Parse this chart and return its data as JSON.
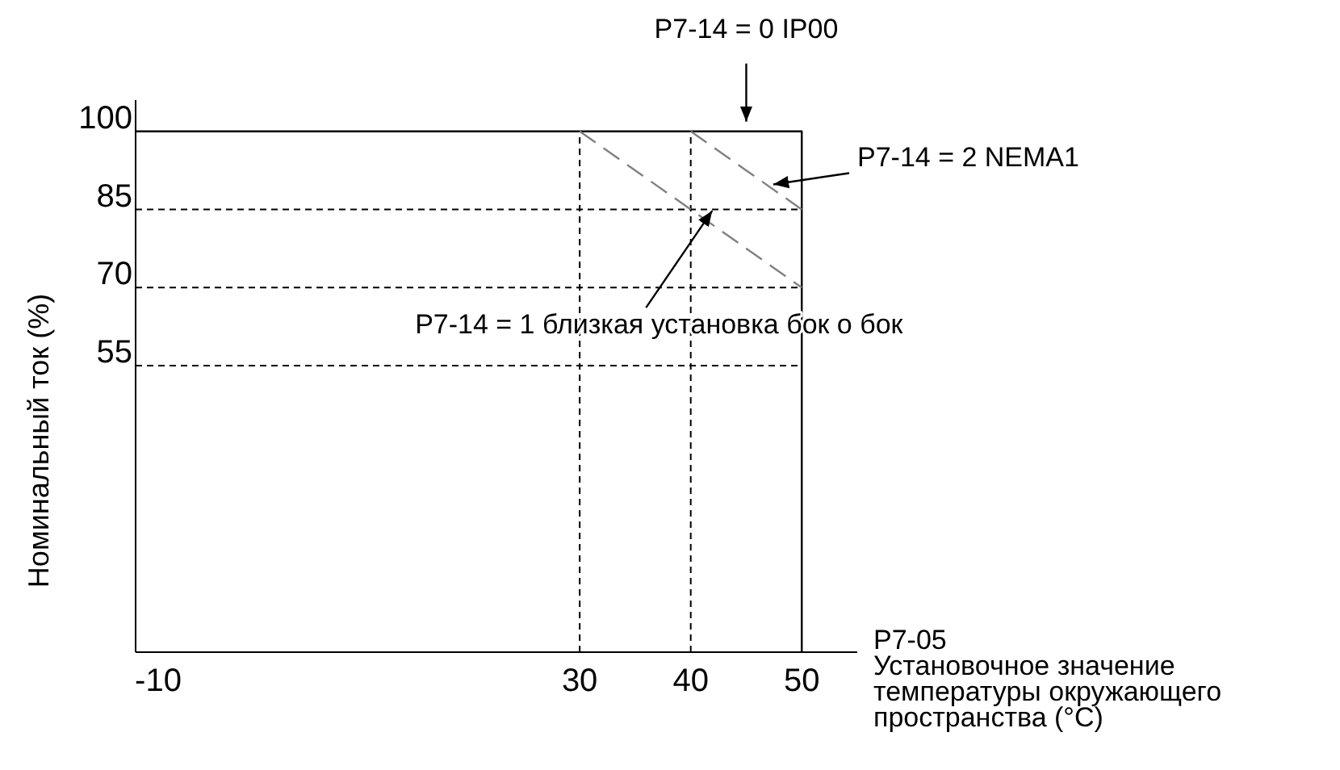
{
  "chart_data": {
    "type": "line",
    "xlabel": "P7-05\nУстановочное значение\nтемпературы окружающего\nпространства (°C)",
    "ylabel": "Номинальный ток (%)",
    "xlim": [
      -10,
      55
    ],
    "xticks": [
      -10,
      30,
      40,
      50
    ],
    "ylim": [
      0,
      106
    ],
    "yticks": [
      55,
      70,
      85,
      100
    ],
    "grid": false,
    "marker": "none",
    "series": [
      {
        "color": "#000000",
        "x": [
          -10,
          50,
          50
        ],
        "values": [
          100,
          100,
          0
        ],
        "line_style": "solid"
      },
      {
        "color": "#808080",
        "x": [
          40,
          50
        ],
        "values": [
          100,
          85
        ],
        "line_style": "dashed"
      },
      {
        "color": "#808080",
        "x": [
          30,
          50
        ],
        "values": [
          100,
          70
        ],
        "line_style": "dashed"
      }
    ],
    "ref_lines": [
      {
        "axis": "x",
        "value": 30,
        "line_style": "dashed",
        "color": "#000000"
      },
      {
        "axis": "x",
        "value": 40,
        "line_style": "dashed",
        "color": "#000000"
      },
      {
        "axis": "y",
        "value": 85,
        "line_style": "dashed",
        "color": "#000000"
      },
      {
        "axis": "y",
        "value": 70,
        "line_style": "dashed",
        "color": "#000000"
      },
      {
        "axis": "y",
        "value": 55,
        "line_style": "dashed",
        "color": "#000000"
      }
    ],
    "annotations": [
      {
        "text": "P7-14 = 0 IP00",
        "x": 45,
        "y": 100
      },
      {
        "text": "P7-14 = 2 NEMA1",
        "x": 47,
        "y": 89.5
      },
      {
        "text": "P7-14 = 1 близкая установка бок о бок",
        "x": 41.5,
        "y": 86
      }
    ]
  }
}
